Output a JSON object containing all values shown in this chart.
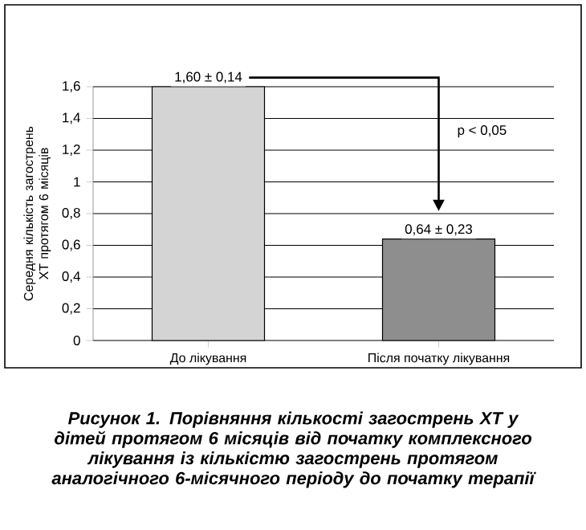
{
  "chart_data": {
    "type": "bar",
    "title": "Рисунок 1. Порівняння кількості загострень ХТ у дітей протягом 6 місяців від початку комплексного лікування із кількістю загострень протягом аналогічного 6-місячного періоду до початку терапії",
    "ylabel": "Середня кількість загострень ХТ протягом 6 місяців",
    "categories": [
      "До лікування",
      "Після початку лікування"
    ],
    "values": [
      1.6,
      0.64
    ],
    "colors": [
      "#d4d4d4",
      "#8e8e8e"
    ],
    "value_labels": [
      "1,60 ± 0,14",
      "0,64 ± 0,23"
    ],
    "annotations": [
      "p < 0,05"
    ],
    "ylim": [
      0,
      1.6
    ],
    "yticks": [
      {
        "value": 0,
        "label": "0"
      },
      {
        "value": 0.2,
        "label": "0,2"
      },
      {
        "value": 0.4,
        "label": "0,4"
      },
      {
        "value": 0.6,
        "label": "0,6"
      },
      {
        "value": 0.8,
        "label": "0,8"
      },
      {
        "value": 1,
        "label": "1"
      },
      {
        "value": 1.2,
        "label": "1,2"
      },
      {
        "value": 1.4,
        "label": "1,4"
      },
      {
        "value": 1.6,
        "label": "1,6"
      }
    ],
    "grid": "y"
  }
}
